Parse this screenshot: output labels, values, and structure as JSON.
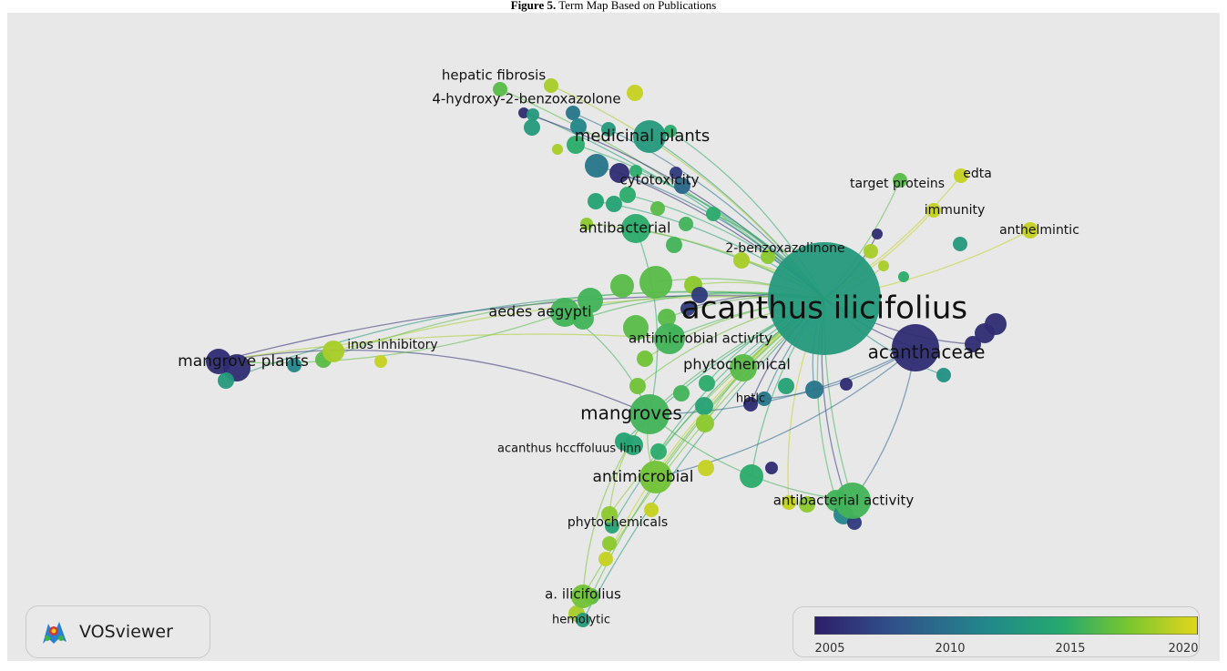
{
  "caption": {
    "label": "Figure 5.",
    "text": "Term Map Based on Publications"
  },
  "brand": {
    "name": "VOSviewer",
    "icon": "vosviewer-logo-icon"
  },
  "legend": {
    "ticks": [
      "2005",
      "2010",
      "2015",
      "2020"
    ],
    "range": [
      2003,
      2021
    ],
    "colors": [
      "#2d1e6a",
      "#31508a",
      "#22888a",
      "#26a96d",
      "#7ac62f",
      "#e2d61c"
    ]
  },
  "terms": [
    {
      "id": "acanthus-ilicifolius",
      "label": "acanthus ilicifolius",
      "year": 2012
    },
    {
      "id": "hepatic-fibrosis",
      "label": "hepatic fibrosis",
      "year": 2016
    },
    {
      "id": "4-hydroxy-2-benzoxazolone",
      "label": "4-hydroxy-2-benzoxazolone",
      "year": 2012
    },
    {
      "id": "medicinal-plants",
      "label": "medicinal plants",
      "year": 2012
    },
    {
      "id": "cytotoxicity",
      "label": "cytotoxicity",
      "year": 2004
    },
    {
      "id": "target-proteins",
      "label": "target proteins",
      "year": 2016
    },
    {
      "id": "edta",
      "label": "edta",
      "year": 2020
    },
    {
      "id": "immunity",
      "label": "immunity",
      "year": 2020
    },
    {
      "id": "anthelmintic",
      "label": "anthelmintic",
      "year": 2020
    },
    {
      "id": "antibacterial",
      "label": "antibacterial",
      "year": 2014
    },
    {
      "id": "2-benzoxazolinone",
      "label": "2-benzoxazolinone",
      "year": 2019
    },
    {
      "id": "aedes-aegypti",
      "label": "aedes aegypti",
      "year": 2015
    },
    {
      "id": "antimicrobial-activity",
      "label": "antimicrobial activity",
      "year": 2015
    },
    {
      "id": "acanthaceae",
      "label": "acanthaceae",
      "year": 2004
    },
    {
      "id": "mangrove-plants",
      "label": "mangrove plants",
      "year": 2004
    },
    {
      "id": "inos-inhibitory",
      "label": "inos inhibitory",
      "year": 2019
    },
    {
      "id": "phytochemical",
      "label": "phytochemical",
      "year": 2016
    },
    {
      "id": "hptlc",
      "label": "hptlc",
      "year": 2009
    },
    {
      "id": "mangroves",
      "label": "mangroves",
      "year": 2015
    },
    {
      "id": "acanthus-hccffoluus-linn",
      "label": "acanthus hccffoluus linn",
      "year": 2013
    },
    {
      "id": "antimicrobial",
      "label": "antimicrobial",
      "year": 2017
    },
    {
      "id": "antibacterial-activity",
      "label": "antibacterial activity",
      "year": 2015
    },
    {
      "id": "phytochemicals",
      "label": "phytochemicals",
      "year": 2018
    },
    {
      "id": "a-ilicifolius",
      "label": "a. ilicifolius",
      "year": 2017
    },
    {
      "id": "hemolytic",
      "label": "hemolytic",
      "year": 2012
    }
  ]
}
